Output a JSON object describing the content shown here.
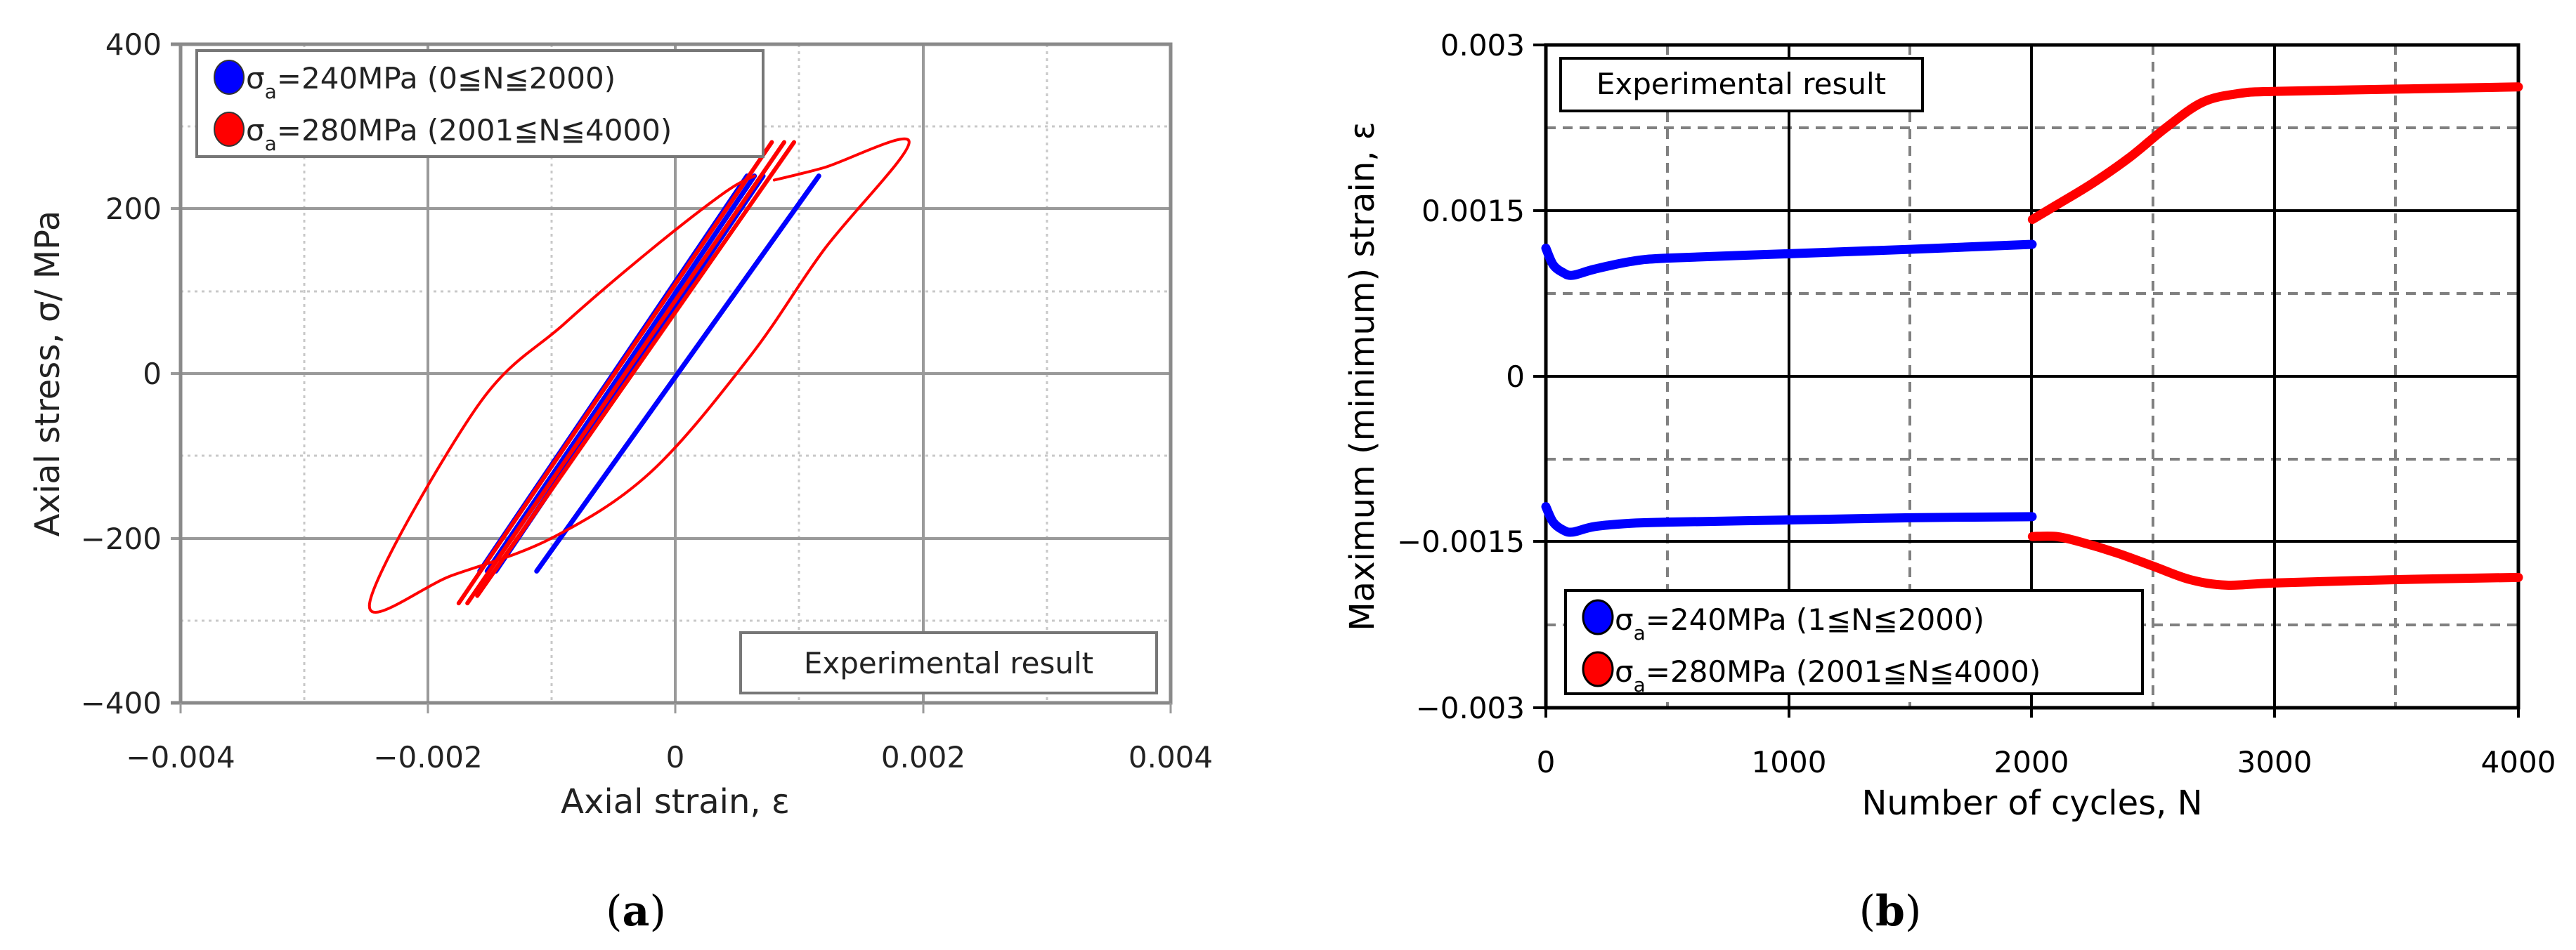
{
  "figure": {
    "panel_a_caption_open": "(",
    "panel_a_caption_letter": "a",
    "panel_a_caption_close": ")",
    "panel_b_caption_open": "(",
    "panel_b_caption_letter": "b",
    "panel_b_caption_close": ")"
  },
  "colors": {
    "series_240": "#0000ff",
    "series_280": "#ff0000",
    "grid_a": "#9a9a9a",
    "grid_b": "#808080",
    "axis_b": "#000000"
  },
  "panel_a": {
    "xlabel": "Axial strain, ε",
    "ylabel": "Axial stress, σ/ MPa",
    "xticks": [
      "−0.004",
      "−0.002",
      "0",
      "0.002",
      "0.004"
    ],
    "yticks": [
      "400",
      "200",
      "0",
      "−200",
      "−400"
    ],
    "annotation": "Experimental result",
    "legend": [
      {
        "sym": "σ",
        "sub": "a",
        "text": "=240MPa (0≦N≦2000)"
      },
      {
        "sym": "σ",
        "sub": "a",
        "text": "=280MPa (2001≦N≦4000)"
      }
    ]
  },
  "panel_b": {
    "xlabel": "Number of cycles, N",
    "ylabel": "Maximum (minimum) strain, ε",
    "xticks": [
      "0",
      "1000",
      "2000",
      "3000",
      "4000"
    ],
    "yticks": [
      "0.003",
      "0.0015",
      "0",
      "−0.0015",
      "−0.003"
    ],
    "annotation": "Experimental result",
    "legend": [
      {
        "sym": "σ",
        "sub": "a",
        "text": "=240MPa (1≦N≦2000)"
      },
      {
        "sym": "σ",
        "sub": "a",
        "text": "=280MPa (2001≦N≦4000)"
      }
    ]
  },
  "chart_data": [
    {
      "type": "line",
      "title": "(a)",
      "xlabel": "Axial strain, ε",
      "ylabel": "Axial stress, σ/ MPa",
      "xlim": [
        -0.004,
        0.004
      ],
      "ylim": [
        -400,
        400
      ],
      "xticks": [
        -0.004,
        -0.002,
        0,
        0.002,
        0.004
      ],
      "yticks": [
        -400,
        -200,
        0,
        200,
        400
      ],
      "grid": true,
      "legend_position": "upper left",
      "annotation": "Experimental result",
      "series": [
        {
          "name": "σa=240MPa (0≦N≦2000)",
          "color": "#0000ff",
          "description": "Nearly elastic stress-strain lines; first cycle offset to the right, subsequent cycles stacked",
          "segments": [
            {
              "x": [
                -0.00112,
                0.00116
              ],
              "y": [
                -240,
                240
              ]
            },
            {
              "x": [
                -0.00145,
                0.00071
              ],
              "y": [
                -240,
                240
              ]
            },
            {
              "x": [
                -0.00152,
                0.00064
              ],
              "y": [
                -240,
                240
              ]
            },
            {
              "x": [
                -0.00158,
                0.00058
              ],
              "y": [
                -240,
                240
              ]
            }
          ]
        },
        {
          "name": "σa=280MPa (2001≦N≦4000)",
          "color": "#ff0000",
          "description": "First 280MPa cycle forms a wide hysteresis loop, later cycles narrow",
          "segments": [
            {
              "x": [
                0.00064,
                0.0004,
                -0.0002,
                -0.0009,
                -0.0016,
                -0.00247,
                -0.0018,
                -0.001,
                -0.0002,
                0.0006,
                0.0012,
                0.00189,
                0.0012,
                0.0008
              ],
              "y": [
                240,
                220,
                150,
                60,
                -40,
                -279,
                -245,
                -200,
                -120,
                20,
                150,
                281,
                250,
                235
              ]
            },
            {
              "x": [
                -0.00175,
                0.00078
              ],
              "y": [
                -279,
                281
              ]
            },
            {
              "x": [
                -0.00168,
                0.00088
              ],
              "y": [
                -279,
                281
              ]
            },
            {
              "x": [
                -0.0016,
                0.00096
              ],
              "y": [
                -270,
                281
              ]
            }
          ]
        }
      ]
    },
    {
      "type": "line",
      "title": "(b)",
      "xlabel": "Number of cycles, N",
      "ylabel": "Maximum (minimum) strain, ε",
      "xlim": [
        0,
        4000
      ],
      "ylim": [
        -0.003,
        0.003
      ],
      "xticks": [
        0,
        1000,
        2000,
        3000,
        4000
      ],
      "yticks": [
        -0.003,
        -0.0015,
        0,
        0.0015,
        0.003
      ],
      "grid": true,
      "legend_position": "lower left",
      "annotation": "Experimental result",
      "series": [
        {
          "name": "σa=240MPa (1≦N≦2000) max",
          "color": "#0000ff",
          "x": [
            0,
            30,
            70,
            110,
            200,
            350,
            500,
            1000,
            1500,
            2000
          ],
          "y": [
            0.00116,
            0.00101,
            0.00094,
            0.000915,
            0.00097,
            0.00104,
            0.00107,
            0.00111,
            0.00115,
            0.001195
          ]
        },
        {
          "name": "σa=240MPa (1≦N≦2000) min",
          "color": "#0000ff",
          "x": [
            0,
            30,
            70,
            110,
            200,
            350,
            500,
            1000,
            1500,
            2000
          ],
          "y": [
            -0.00118,
            -0.00132,
            -0.00139,
            -0.00141,
            -0.00136,
            -0.00133,
            -0.00132,
            -0.0013,
            -0.00128,
            -0.00127
          ]
        },
        {
          "name": "σa=280MPa (2001≦N≦4000) max",
          "color": "#ff0000",
          "x": [
            2001,
            2100,
            2250,
            2400,
            2550,
            2700,
            2850,
            3000,
            3500,
            4000
          ],
          "y": [
            0.00142,
            0.00155,
            0.00175,
            0.00198,
            0.00225,
            0.00248,
            0.00256,
            0.00258,
            0.0026,
            0.00262
          ]
        },
        {
          "name": "σa=280MPa (2001≦N≦4000) min",
          "color": "#ff0000",
          "x": [
            2001,
            2100,
            2200,
            2350,
            2500,
            2650,
            2800,
            3000,
            3500,
            4000
          ],
          "y": [
            -0.00145,
            -0.00145,
            -0.0015,
            -0.0016,
            -0.00172,
            -0.00184,
            -0.00189,
            -0.00187,
            -0.00184,
            -0.00182
          ]
        }
      ]
    }
  ]
}
